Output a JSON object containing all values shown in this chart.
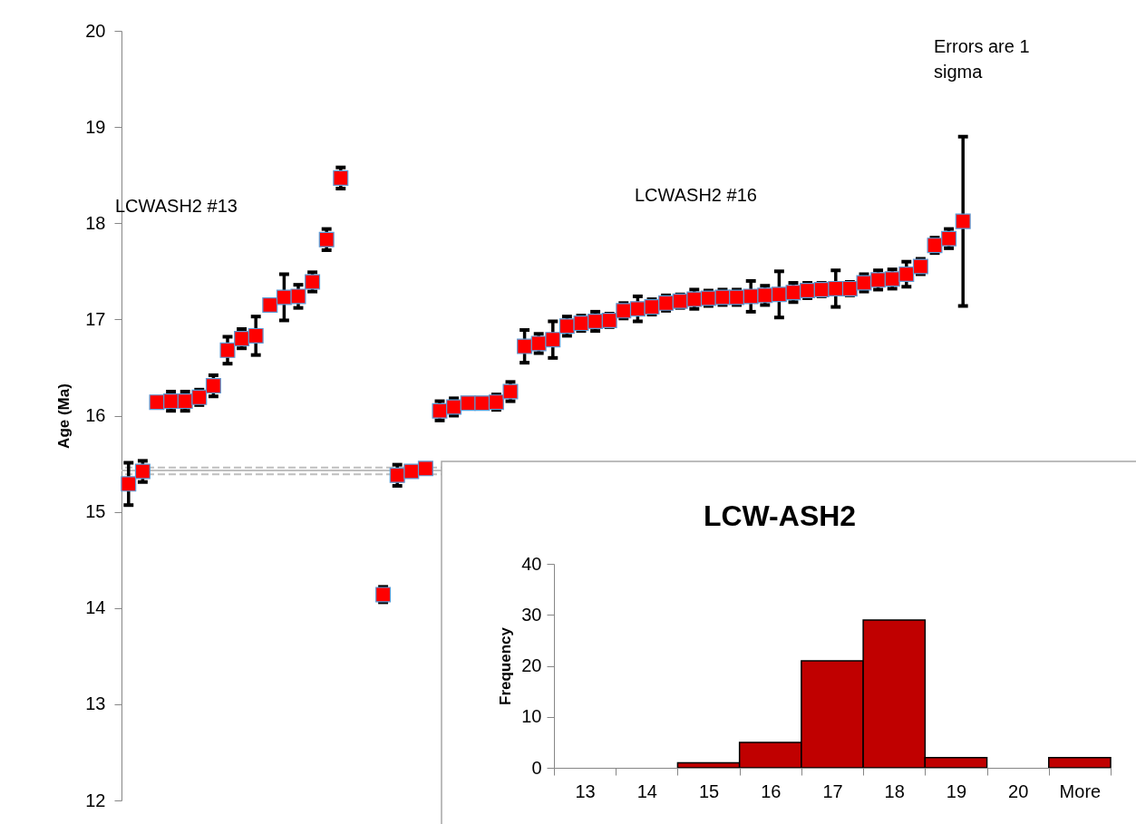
{
  "chart_data": [
    {
      "type": "scatter",
      "ylabel": "Age (Ma)",
      "ylim": [
        12,
        20
      ],
      "yticks": [
        12,
        13,
        14,
        15,
        16,
        17,
        18,
        19,
        20
      ],
      "marker": "square",
      "categories": [
        null,
        null,
        null,
        null,
        null,
        null,
        null,
        null,
        null,
        null,
        null,
        null,
        null,
        null,
        null,
        null,
        null,
        null,
        null,
        null,
        null,
        null,
        null,
        null,
        null,
        null,
        null,
        null,
        null,
        null,
        null,
        null,
        null,
        null,
        null,
        null,
        null,
        null,
        null,
        null,
        null,
        null,
        null,
        null,
        null,
        null,
        null,
        null,
        null,
        null,
        null,
        null,
        null,
        null,
        null,
        null,
        null,
        null,
        null,
        null
      ],
      "series": [
        {
          "color": "#ff0000",
          "values": [
            15.29,
            15.42,
            16.14,
            16.15,
            16.15,
            16.19,
            16.31,
            16.68,
            16.8,
            16.83,
            17.15,
            17.23,
            17.24,
            17.39,
            17.83,
            18.47,
            null,
            null,
            14.14,
            15.38,
            15.42,
            15.45,
            16.05,
            16.09,
            16.13,
            16.13,
            16.14,
            16.25,
            16.72,
            16.75,
            16.79,
            16.93,
            16.96,
            16.98,
            16.99,
            17.09,
            17.11,
            17.13,
            17.17,
            17.19,
            17.21,
            17.22,
            17.23,
            17.23,
            17.24,
            17.25,
            17.26,
            17.28,
            17.3,
            17.31,
            17.32,
            17.32,
            17.38,
            17.41,
            17.42,
            17.47,
            17.55,
            17.77,
            17.84,
            18.02
          ],
          "errors": [
            0.22,
            0.11,
            null,
            0.1,
            0.1,
            0.08,
            0.11,
            0.14,
            0.1,
            0.2,
            null,
            0.24,
            0.12,
            0.1,
            0.11,
            0.11,
            null,
            null,
            0.08,
            0.11,
            null,
            null,
            0.1,
            0.09,
            null,
            null,
            0.08,
            0.1,
            0.17,
            0.1,
            0.19,
            0.1,
            0.08,
            0.1,
            0.07,
            0.08,
            0.13,
            0.08,
            0.08,
            0.07,
            0.1,
            0.08,
            0.08,
            0.08,
            0.16,
            0.1,
            0.24,
            0.1,
            0.08,
            0.07,
            0.19,
            0.07,
            0.09,
            0.1,
            0.1,
            0.13,
            0.08,
            0.08,
            0.1,
            0.88
          ]
        }
      ],
      "ref_lines": [
        {
          "axis": "y",
          "value": 15.46,
          "color": "#bfbfbf",
          "line_style": "dashed"
        },
        {
          "axis": "y",
          "value": 15.43,
          "color": "#bfbfbf",
          "line_style": "solid"
        },
        {
          "axis": "y",
          "value": 15.39,
          "color": "#bfbfbf",
          "line_style": "dashed"
        }
      ],
      "annotations": [
        "LCWASH2 #13",
        "LCWASH2 #16",
        "Errors are 1 sigma"
      ]
    },
    {
      "type": "bar",
      "title": "LCW-ASH2",
      "ylabel": "Frequency",
      "categories": [
        "13",
        "14",
        "15",
        "16",
        "17",
        "18",
        "19",
        "20",
        "More"
      ],
      "values": [
        0,
        0,
        1,
        5,
        21,
        29,
        2,
        0,
        2
      ],
      "color": "#c00000",
      "ylim": [
        0,
        40
      ],
      "yticks": [
        0,
        10,
        20,
        30,
        40
      ]
    }
  ]
}
